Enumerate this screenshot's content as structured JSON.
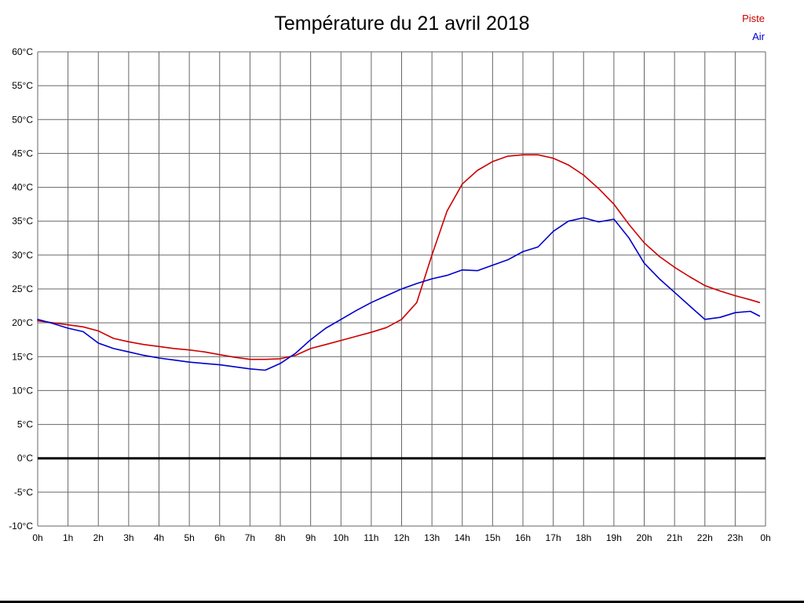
{
  "page": {
    "background": "#ffffff"
  },
  "chart_data": {
    "type": "line",
    "title": "Température du 21 avril 2018",
    "xlabel": "",
    "ylabel": "",
    "xlim": [
      0,
      24
    ],
    "ylim": [
      -10,
      60
    ],
    "x_step": 1,
    "y_step": 5,
    "grid": true,
    "grid_color": "#666666",
    "axis_text_color": "#000000",
    "zero_line": {
      "value": 0,
      "color": "#000000",
      "width": 3
    },
    "x_tick_labels": [
      "0h",
      "1h",
      "2h",
      "3h",
      "4h",
      "5h",
      "6h",
      "7h",
      "8h",
      "9h",
      "10h",
      "11h",
      "12h",
      "13h",
      "14h",
      "15h",
      "16h",
      "17h",
      "18h",
      "19h",
      "20h",
      "21h",
      "22h",
      "23h",
      "0h"
    ],
    "y_tick_labels": [
      "60°C",
      "55°C",
      "50°C",
      "45°C",
      "40°C",
      "35°C",
      "30°C",
      "25°C",
      "20°C",
      "15°C",
      "10°C",
      "5°C",
      "0°C",
      "-5°C",
      "-10°C"
    ],
    "legend_position": "top-right",
    "series": [
      {
        "name": "Piste",
        "color": "#cc0000",
        "x": [
          0,
          0.5,
          1,
          1.5,
          2,
          2.5,
          3,
          3.5,
          4,
          4.5,
          5,
          5.5,
          6,
          6.5,
          7,
          7.5,
          8,
          8.5,
          9,
          9.5,
          10,
          10.5,
          11,
          11.5,
          12,
          12.5,
          13,
          13.5,
          14,
          14.5,
          15,
          15.5,
          16,
          16.5,
          17,
          17.5,
          18,
          18.5,
          19,
          19.5,
          20,
          20.5,
          21,
          21.5,
          22,
          22.5,
          23,
          23.5,
          23.8
        ],
        "values": [
          20.3,
          20.0,
          19.7,
          19.4,
          18.8,
          17.7,
          17.2,
          16.8,
          16.5,
          16.2,
          16.0,
          15.7,
          15.3,
          14.9,
          14.6,
          14.6,
          14.7,
          15.2,
          16.2,
          16.8,
          17.4,
          18.0,
          18.6,
          19.3,
          20.5,
          23.0,
          30.0,
          36.5,
          40.5,
          42.5,
          43.8,
          44.6,
          44.8,
          44.8,
          44.3,
          43.3,
          41.8,
          39.8,
          37.5,
          34.5,
          31.8,
          29.8,
          28.2,
          26.8,
          25.5,
          24.7,
          24.0,
          23.4,
          23.0
        ]
      },
      {
        "name": "Air",
        "color": "#0000cc",
        "x": [
          0,
          0.5,
          1,
          1.5,
          2,
          2.5,
          3,
          3.5,
          4,
          4.5,
          5,
          5.5,
          6,
          6.5,
          7,
          7.5,
          8,
          8.5,
          9,
          9.5,
          10,
          10.5,
          11,
          11.5,
          12,
          12.5,
          13,
          13.5,
          14,
          14.5,
          15,
          15.5,
          16,
          16.5,
          17,
          17.5,
          18,
          18.5,
          19,
          19.5,
          20,
          20.5,
          21,
          21.5,
          22,
          22.5,
          23,
          23.5,
          23.8
        ],
        "values": [
          20.5,
          19.9,
          19.2,
          18.7,
          17.0,
          16.2,
          15.7,
          15.2,
          14.8,
          14.5,
          14.2,
          14.0,
          13.8,
          13.5,
          13.2,
          13.0,
          14.0,
          15.5,
          17.5,
          19.2,
          20.5,
          21.8,
          23.0,
          24.0,
          25.0,
          25.8,
          26.5,
          27.0,
          27.8,
          27.7,
          28.5,
          29.3,
          30.5,
          31.2,
          33.5,
          35.0,
          35.5,
          34.9,
          35.3,
          32.5,
          28.8,
          26.5,
          24.5,
          22.5,
          20.5,
          20.8,
          21.5,
          21.7,
          21.0
        ]
      }
    ]
  }
}
